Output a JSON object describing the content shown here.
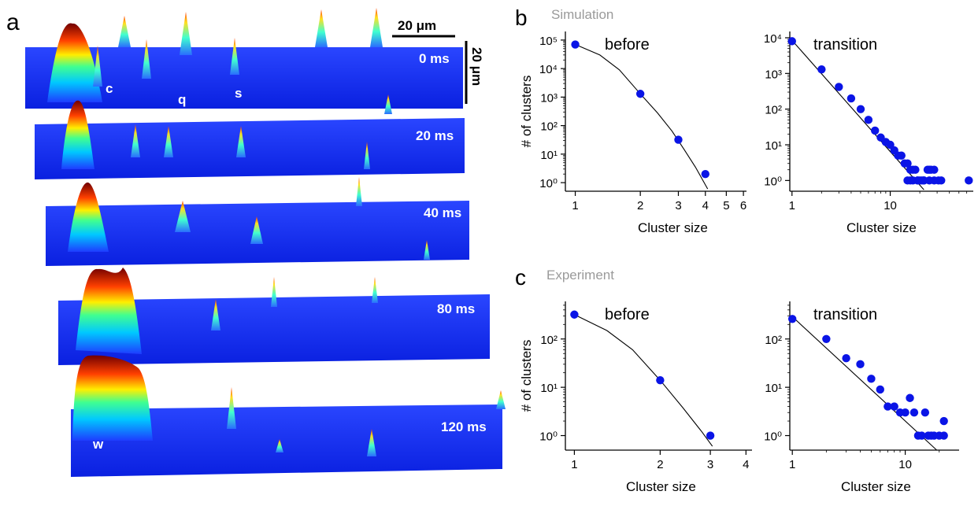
{
  "panels": {
    "a": {
      "label": "a",
      "scalebar_x": "20 μm",
      "scalebar_y": "20 μm",
      "frame_labels": [
        "0 ms",
        "20 ms",
        "40 ms",
        "80 ms",
        "120 ms"
      ],
      "annotations": [
        "c",
        "q",
        "s",
        "w"
      ]
    },
    "b": {
      "label": "b",
      "title": "Simulation"
    },
    "c": {
      "label": "c",
      "title": "Experiment"
    }
  },
  "colors": {
    "marker": "#0a14e6",
    "fit": "#000000",
    "title": "#9a9a9a",
    "surface_base": "#1030ff",
    "peak_hot": "#7a0000"
  },
  "chart_data": [
    {
      "id": "sim-before",
      "type": "scatter",
      "title": "before",
      "xlabel": "Cluster size",
      "ylabel": "# of clusters",
      "xscale": "log",
      "yscale": "log",
      "xlim": [
        0.9,
        6.2
      ],
      "ylim": [
        0.5,
        200000
      ],
      "xticks": [
        1,
        2,
        3,
        4,
        5,
        6
      ],
      "yticks": [
        1,
        10,
        100,
        1000,
        10000,
        100000
      ],
      "x": [
        1,
        2,
        3,
        4
      ],
      "y": [
        70000,
        1300,
        32,
        2
      ],
      "fit": {
        "x": [
          1,
          1.3,
          1.6,
          2,
          2.4,
          2.8,
          3.2,
          3.6,
          4.1
        ],
        "y": [
          70000,
          30000,
          9000,
          1300,
          280,
          65,
          14,
          3.5,
          0.6
        ]
      }
    },
    {
      "id": "sim-transition",
      "type": "scatter",
      "title": "transition",
      "xlabel": "Cluster size",
      "ylabel": "",
      "xscale": "log",
      "yscale": "log",
      "xlim": [
        0.95,
        70
      ],
      "ylim": [
        0.5,
        15000
      ],
      "xticks": [
        1,
        10
      ],
      "yticks": [
        1,
        10,
        100,
        1000,
        10000
      ],
      "x": [
        1,
        2,
        3,
        4,
        5,
        6,
        7,
        8,
        9,
        10,
        11,
        12,
        13,
        14,
        15,
        16,
        17,
        18,
        19,
        20,
        21,
        22,
        24,
        25,
        26,
        28,
        31,
        63,
        15,
        16,
        17,
        19,
        22,
        25,
        28,
        33
      ],
      "y": [
        8000,
        1300,
        420,
        200,
        100,
        50,
        25,
        16,
        12,
        10,
        7,
        5,
        5,
        3,
        3,
        2,
        2,
        2,
        1,
        1,
        1,
        1,
        2,
        2,
        2,
        2,
        1,
        1,
        1,
        1,
        1,
        1,
        1,
        1,
        1,
        1
      ],
      "fit": {
        "x": [
          1,
          22
        ],
        "y": [
          8500,
          0.55
        ]
      }
    },
    {
      "id": "exp-before",
      "type": "scatter",
      "title": "before",
      "xlabel": "Cluster size",
      "ylabel": "# of clusters",
      "xscale": "log",
      "yscale": "log",
      "xlim": [
        0.93,
        4.2
      ],
      "ylim": [
        0.5,
        600
      ],
      "xticks": [
        1,
        2,
        3,
        4
      ],
      "yticks": [
        1,
        10,
        100
      ],
      "x": [
        1,
        2,
        3
      ],
      "y": [
        320,
        14,
        1
      ],
      "fit": {
        "x": [
          1,
          1.3,
          1.6,
          2,
          2.4,
          2.8,
          3.05
        ],
        "y": [
          320,
          150,
          60,
          14,
          3.8,
          1.2,
          0.6
        ]
      }
    },
    {
      "id": "exp-transition",
      "type": "scatter",
      "title": "transition",
      "xlabel": "Cluster size",
      "ylabel": "",
      "xscale": "log",
      "yscale": "log",
      "xlim": [
        0.95,
        30
      ],
      "ylim": [
        0.5,
        600
      ],
      "xticks": [
        1,
        10
      ],
      "yticks": [
        1,
        10,
        100
      ],
      "x": [
        1,
        2,
        3,
        4,
        5,
        6,
        7,
        8,
        9,
        10,
        11,
        12,
        13,
        14,
        15,
        16,
        17,
        18,
        20,
        22,
        22
      ],
      "y": [
        260,
        100,
        40,
        30,
        15,
        9,
        4,
        4,
        3,
        3,
        6,
        3,
        1,
        1,
        3,
        1,
        1,
        1,
        1,
        2,
        1
      ],
      "fit": {
        "x": [
          1,
          19
        ],
        "y": [
          290,
          0.5
        ]
      }
    }
  ]
}
